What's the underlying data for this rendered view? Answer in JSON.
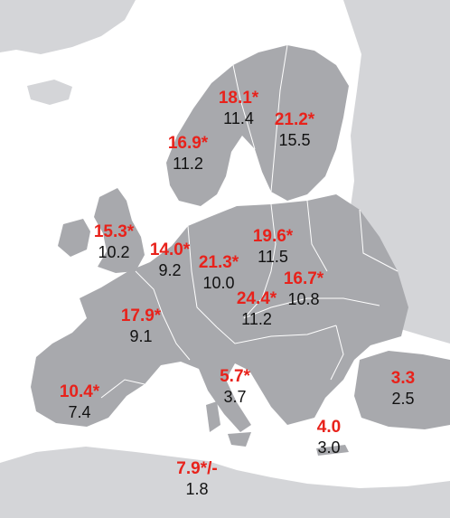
{
  "colors": {
    "sea": "#ffffff",
    "land_europe": "#a8a9ad",
    "land_background": "#d4d5d8",
    "border": "#ffffff",
    "value_highlight": "#e8221b",
    "value_base": "#111111"
  },
  "labels": [
    {
      "id": "finland-north",
      "top": "18.1*",
      "bottom": "11.4"
    },
    {
      "id": "finland-south",
      "top": "21.2*",
      "bottom": "15.5"
    },
    {
      "id": "norway",
      "top": "16.9*",
      "bottom": "11.2"
    },
    {
      "id": "uk",
      "top": "15.3*",
      "bottom": "10.2"
    },
    {
      "id": "benelux",
      "top": "14.0*",
      "bottom": "9.2"
    },
    {
      "id": "germany",
      "top": "21.3*",
      "bottom": "10.0"
    },
    {
      "id": "poland",
      "top": "19.6*",
      "bottom": "11.5"
    },
    {
      "id": "slovakia",
      "top": "16.7*",
      "bottom": "10.8"
    },
    {
      "id": "austria",
      "top": "24.4*",
      "bottom": "11.2"
    },
    {
      "id": "france",
      "top": "17.9*",
      "bottom": "9.1"
    },
    {
      "id": "spain",
      "top": "10.4*",
      "bottom": "7.4"
    },
    {
      "id": "italy",
      "top": "5.7*",
      "bottom": "3.7"
    },
    {
      "id": "turkey",
      "top": "3.3",
      "bottom": "2.5"
    },
    {
      "id": "greece",
      "top": "4.0",
      "bottom": "3.0"
    },
    {
      "id": "tunisia",
      "top": "7.9*/-",
      "bottom": "1.8"
    }
  ]
}
